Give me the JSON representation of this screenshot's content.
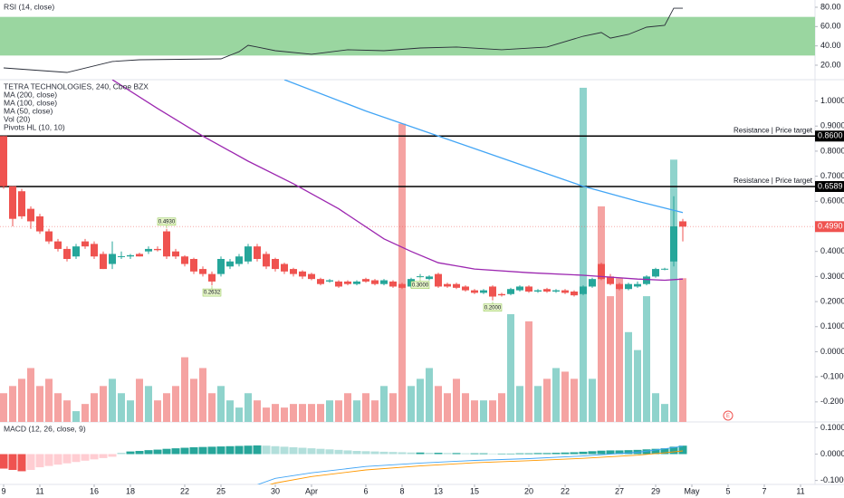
{
  "chart_data": [
    {
      "type": "line",
      "title": "RSI (14, close)",
      "color": "#2a2e39",
      "band": [
        30,
        70
      ],
      "band_color": "#9ad6a0",
      "x": [
        0,
        7,
        12,
        15,
        24,
        26,
        27,
        28,
        30,
        34,
        38,
        42,
        46,
        50,
        55,
        60,
        64,
        66,
        67,
        69,
        71,
        73,
        74,
        75
      ],
      "values": [
        17.2,
        12.5,
        23.8,
        25.6,
        26.6,
        34,
        40.6,
        38.8,
        35,
        31.3,
        36,
        35,
        37.8,
        38.8,
        36,
        38.8,
        50,
        53.8,
        48,
        51.9,
        59.4,
        61.3,
        79,
        79
      ],
      "xlim": [
        -0.4,
        89.6
      ],
      "ylim": [
        5,
        87.5
      ],
      "yticks": [
        {
          "value": 80,
          "label": "80.00"
        },
        {
          "value": 60,
          "label": "60.00"
        },
        {
          "value": 40,
          "label": "40.00"
        },
        {
          "value": 20,
          "label": "20.00"
        }
      ]
    },
    {
      "type": "candlestick",
      "title": "TETRA TECHNOLOGIES, 240, Cboe BZX",
      "indicators": [
        "MA (200, close)",
        "MA (100, close)",
        "MA (50, close)",
        "Vol (20)",
        "Pivots HL (10, 10)"
      ],
      "up_color": "#26a69a",
      "down_color": "#ef5350",
      "x": [
        0,
        1,
        2,
        3,
        4,
        5,
        6,
        7,
        8,
        9,
        10,
        11,
        12,
        13,
        14,
        15,
        16,
        17,
        18,
        19,
        20,
        21,
        22,
        23,
        24,
        25,
        26,
        27,
        28,
        29,
        30,
        31,
        32,
        33,
        34,
        35,
        36,
        37,
        38,
        39,
        40,
        41,
        42,
        43,
        44,
        45,
        46,
        47,
        48,
        49,
        50,
        51,
        52,
        53,
        54,
        55,
        56,
        57,
        58,
        59,
        60,
        61,
        62,
        63,
        64,
        65,
        66,
        67,
        68,
        69,
        70,
        71,
        72,
        73,
        74,
        75
      ],
      "open": [
        0.86,
        0.66,
        0.64,
        0.57,
        0.54,
        0.48,
        0.44,
        0.41,
        0.38,
        0.44,
        0.43,
        0.39,
        0.35,
        0.38,
        0.38,
        0.39,
        0.4,
        0.41,
        0.48,
        0.4,
        0.38,
        0.37,
        0.33,
        0.31,
        0.31,
        0.34,
        0.35,
        0.36,
        0.42,
        0.39,
        0.37,
        0.35,
        0.33,
        0.32,
        0.31,
        0.29,
        0.28,
        0.28,
        0.28,
        0.27,
        0.29,
        0.285,
        0.27,
        0.28,
        0.27,
        0.26,
        0.3,
        0.29,
        0.31,
        0.27,
        0.27,
        0.26,
        0.245,
        0.235,
        0.26,
        0.23,
        0.23,
        0.245,
        0.26,
        0.24,
        0.25,
        0.24,
        0.245,
        0.24,
        0.23,
        0.26,
        0.35,
        0.3,
        0.27,
        0.25,
        0.26,
        0.27,
        0.3,
        0.33,
        0.36,
        0.52
      ],
      "high": [
        0.86,
        0.66,
        0.65,
        0.58,
        0.55,
        0.49,
        0.45,
        0.42,
        0.43,
        0.45,
        0.44,
        0.4,
        0.44,
        0.4,
        0.39,
        0.395,
        0.42,
        0.42,
        0.49,
        0.41,
        0.385,
        0.375,
        0.34,
        0.32,
        0.38,
        0.37,
        0.39,
        0.43,
        0.43,
        0.4,
        0.375,
        0.355,
        0.335,
        0.325,
        0.315,
        0.295,
        0.29,
        0.285,
        0.285,
        0.285,
        0.295,
        0.29,
        0.29,
        0.285,
        0.275,
        0.295,
        0.31,
        0.305,
        0.315,
        0.275,
        0.275,
        0.265,
        0.25,
        0.25,
        0.265,
        0.235,
        0.255,
        0.265,
        0.265,
        0.25,
        0.255,
        0.25,
        0.25,
        0.245,
        0.265,
        0.295,
        0.355,
        0.31,
        0.275,
        0.275,
        0.28,
        0.305,
        0.335,
        0.335,
        0.62,
        0.53
      ],
      "low": [
        0.65,
        0.5,
        0.53,
        0.49,
        0.47,
        0.43,
        0.4,
        0.36,
        0.37,
        0.41,
        0.37,
        0.33,
        0.33,
        0.37,
        0.37,
        0.38,
        0.39,
        0.4,
        0.37,
        0.37,
        0.34,
        0.31,
        0.3,
        0.265,
        0.3,
        0.33,
        0.34,
        0.35,
        0.36,
        0.33,
        0.32,
        0.31,
        0.3,
        0.29,
        0.285,
        0.265,
        0.275,
        0.255,
        0.265,
        0.265,
        0.275,
        0.265,
        0.265,
        0.255,
        0.25,
        0.255,
        0.295,
        0.285,
        0.255,
        0.255,
        0.25,
        0.24,
        0.23,
        0.23,
        0.205,
        0.22,
        0.225,
        0.24,
        0.235,
        0.235,
        0.235,
        0.235,
        0.23,
        0.22,
        0.225,
        0.255,
        0.285,
        0.265,
        0.245,
        0.245,
        0.255,
        0.265,
        0.295,
        0.325,
        0.34,
        0.44
      ],
      "close": [
        0.66,
        0.53,
        0.54,
        0.52,
        0.48,
        0.44,
        0.41,
        0.37,
        0.42,
        0.42,
        0.38,
        0.33,
        0.39,
        0.381,
        0.385,
        0.38,
        0.41,
        0.405,
        0.38,
        0.38,
        0.35,
        0.32,
        0.31,
        0.28,
        0.37,
        0.36,
        0.38,
        0.42,
        0.37,
        0.34,
        0.33,
        0.32,
        0.31,
        0.3,
        0.29,
        0.27,
        0.285,
        0.26,
        0.27,
        0.28,
        0.28,
        0.27,
        0.285,
        0.26,
        0.255,
        0.29,
        0.301,
        0.3,
        0.26,
        0.26,
        0.255,
        0.245,
        0.235,
        0.245,
        0.22,
        0.225,
        0.25,
        0.26,
        0.24,
        0.245,
        0.24,
        0.245,
        0.235,
        0.225,
        0.26,
        0.29,
        0.29,
        0.27,
        0.25,
        0.27,
        0.27,
        0.3,
        0.33,
        0.331,
        0.5,
        0.499
      ],
      "overlays": [
        {
          "color": "#42a5f5",
          "x": [
            31,
            40,
            48,
            56,
            64,
            70,
            75
          ],
          "values": [
            1.085,
            0.96,
            0.86,
            0.76,
            0.66,
            0.6,
            0.555
          ]
        },
        {
          "color": "#9c27b0",
          "x": [
            12,
            17,
            22,
            27,
            32,
            37,
            42,
            45,
            48,
            52,
            58,
            64,
            70,
            73,
            75
          ],
          "values": [
            1.085,
            0.97,
            0.86,
            0.76,
            0.67,
            0.57,
            0.45,
            0.4,
            0.355,
            0.33,
            0.315,
            0.305,
            0.29,
            0.285,
            0.29
          ]
        }
      ],
      "levels": [
        {
          "value": 0.86,
          "label": "0.8600"
        },
        {
          "value": 0.6589,
          "label": "0.6589"
        }
      ],
      "level_text": "Resistance | Price target",
      "last_price": {
        "value": 0.499,
        "label": "0.4990"
      },
      "pivots": [
        {
          "x": 18,
          "value": 0.493,
          "label": "0.4930"
        },
        {
          "x": 23,
          "value": 0.2632,
          "label": "0.2632"
        },
        {
          "x": 46,
          "value": 0.3,
          "label": "0.3000"
        },
        {
          "x": 54,
          "value": 0.2,
          "label": "0.2000"
        }
      ],
      "volume": {
        "ylim": [
          0,
          95
        ],
        "up_color": "#8fd3cc",
        "down_color": "#f5a3a2",
        "values": [
          8,
          10,
          12,
          15,
          10,
          12,
          8,
          6,
          3,
          5,
          8,
          10,
          12,
          8,
          6,
          12,
          10,
          6,
          8,
          10,
          18,
          12,
          15,
          8,
          10,
          6,
          4,
          8,
          6,
          4,
          5,
          4,
          5,
          5,
          5,
          5,
          6,
          6,
          8,
          6,
          8,
          6,
          10,
          8,
          83,
          10,
          12,
          15,
          10,
          8,
          12,
          8,
          6,
          6,
          6,
          8,
          30,
          10,
          28,
          10,
          12,
          15,
          14,
          12,
          93,
          12,
          60,
          35,
          40,
          25,
          20,
          35,
          8,
          5,
          73,
          40
        ]
      },
      "earnings": {
        "x": 80,
        "label": "E"
      },
      "xlim": [
        -0.4,
        89.6
      ],
      "ylim": [
        -0.28,
        1.085
      ],
      "yticks": [
        {
          "value": 1.0,
          "label": "1.0000"
        },
        {
          "value": 0.9,
          "label": "0.9000"
        },
        {
          "value": 0.8,
          "label": "0.8000"
        },
        {
          "value": 0.7,
          "label": "0.7000"
        },
        {
          "value": 0.6,
          "label": "0.6000"
        },
        {
          "value": 0.4,
          "label": "0.4000"
        },
        {
          "value": 0.3,
          "label": "0.3000"
        },
        {
          "value": 0.2,
          "label": "0.2000"
        },
        {
          "value": 0.1,
          "label": "0.1000"
        },
        {
          "value": 0,
          "label": "0.0000"
        },
        {
          "value": -0.1,
          "label": "-0.1000"
        },
        {
          "value": -0.2,
          "label": "-0.2000"
        }
      ]
    },
    {
      "type": "macd",
      "title": "MACD (12, 26, close, 9)",
      "up_color": "#26a69a",
      "up_light": "#b2dfdb",
      "down_color": "#ef5350",
      "down_light": "#ffcdd2",
      "x": [
        0,
        1,
        2,
        3,
        4,
        5,
        6,
        7,
        8,
        9,
        10,
        11,
        12,
        13,
        14,
        15,
        16,
        17,
        18,
        19,
        20,
        21,
        22,
        23,
        24,
        25,
        26,
        27,
        28,
        29,
        30,
        31,
        32,
        33,
        34,
        35,
        36,
        37,
        38,
        39,
        40,
        41,
        42,
        43,
        44,
        45,
        46,
        47,
        48,
        49,
        50,
        51,
        52,
        53,
        54,
        55,
        56,
        57,
        58,
        59,
        60,
        61,
        62,
        63,
        64,
        65,
        66,
        67,
        68,
        69,
        70,
        71,
        72,
        73,
        74,
        75
      ],
      "histogram": [
        -0.055,
        -0.06,
        -0.065,
        -0.06,
        -0.05,
        -0.045,
        -0.04,
        -0.035,
        -0.03,
        -0.025,
        -0.02,
        -0.015,
        -0.01,
        0.005,
        0.01,
        0.012,
        0.015,
        0.017,
        0.02,
        0.022,
        0.024,
        0.026,
        0.027,
        0.028,
        0.029,
        0.03,
        0.031,
        0.032,
        0.033,
        0.032,
        0.03,
        0.028,
        0.026,
        0.024,
        0.022,
        0.02,
        0.018,
        0.016,
        0.014,
        0.012,
        0.011,
        0.01,
        0.009,
        0.008,
        0.007,
        0.006,
        0.006,
        0.005,
        0.005,
        0.004,
        0.004,
        0.003,
        0.003,
        0.003,
        0.002,
        0.002,
        0.002,
        0.003,
        0.003,
        0.004,
        0.004,
        0.005,
        0.006,
        0.007,
        0.009,
        0.011,
        0.013,
        0.014,
        0.014,
        0.015,
        0.016,
        0.018,
        0.02,
        0.022,
        0.028,
        0.032
      ],
      "lines": [
        {
          "color": "#42a5f5",
          "x": [
            25,
            30,
            34,
            40,
            46,
            52,
            58,
            64,
            70,
            73,
            75
          ],
          "values": [
            -0.153,
            -0.092,
            -0.071,
            -0.047,
            -0.034,
            -0.024,
            -0.017,
            -0.007,
            0.007,
            0.02,
            0.03
          ]
        },
        {
          "color": "#ff9800",
          "x": [
            25,
            30,
            34,
            40,
            46,
            52,
            58,
            64,
            70,
            73,
            75
          ],
          "values": [
            -0.16,
            -0.11,
            -0.085,
            -0.06,
            -0.045,
            -0.033,
            -0.025,
            -0.016,
            -0.004,
            0.005,
            0.012
          ]
        }
      ],
      "xlim": [
        -0.4,
        89.6
      ],
      "ylim": [
        -0.115,
        0.122
      ],
      "yticks": [
        {
          "value": 0.1,
          "label": "0.1000"
        },
        {
          "value": 0,
          "label": "0.0000"
        },
        {
          "value": -0.1,
          "label": "-0.1000"
        }
      ],
      "xticks": [
        {
          "value": 0,
          "label": "9"
        },
        {
          "value": 4,
          "label": "11"
        },
        {
          "value": 10,
          "label": "16"
        },
        {
          "value": 14,
          "label": "18"
        },
        {
          "value": 20,
          "label": "22"
        },
        {
          "value": 24,
          "label": "25"
        },
        {
          "value": 30,
          "label": "30"
        },
        {
          "value": 34,
          "label": "Apr"
        },
        {
          "value": 40,
          "label": "6"
        },
        {
          "value": 44,
          "label": "8"
        },
        {
          "value": 48,
          "label": "13"
        },
        {
          "value": 52,
          "label": "15"
        },
        {
          "value": 58,
          "label": "20"
        },
        {
          "value": 62,
          "label": "22"
        },
        {
          "value": 68,
          "label": "27"
        },
        {
          "value": 72,
          "label": "29"
        },
        {
          "value": 76,
          "label": "May"
        },
        {
          "value": 80,
          "label": "5"
        },
        {
          "value": 84,
          "label": "7"
        },
        {
          "value": 88,
          "label": "11"
        }
      ]
    }
  ]
}
